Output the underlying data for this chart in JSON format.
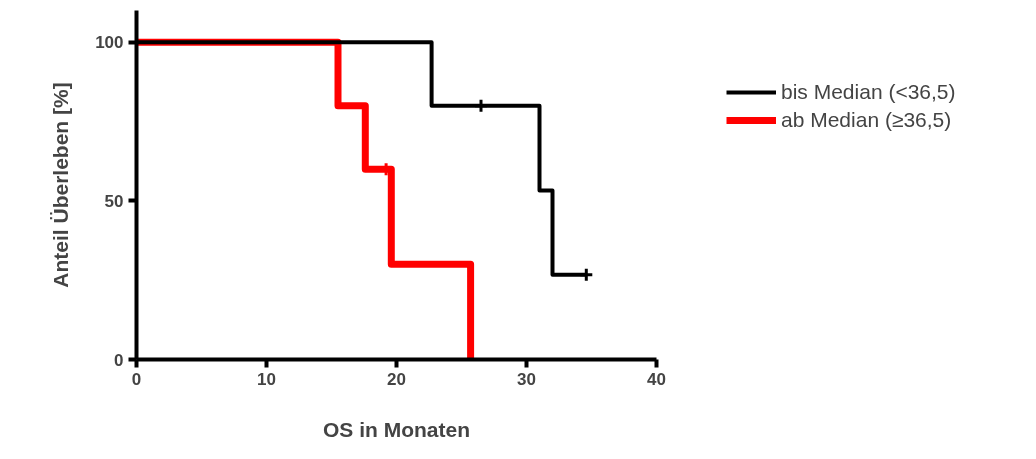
{
  "chart_data": {
    "type": "step",
    "xlabel": "OS in Monaten",
    "ylabel": "Anteil Überleben [%]",
    "xlim": [
      0,
      40
    ],
    "xticks": [
      0,
      10,
      20,
      30,
      40
    ],
    "ylim": [
      0,
      110
    ],
    "yticks": [
      0,
      50,
      100
    ],
    "grid": false,
    "legend": "top right",
    "series": [
      {
        "name": "ab Median (≥36,5)",
        "color": "#ff0000",
        "x": [
          0,
          15.5,
          17.6,
          19.6,
          25.7
        ],
        "values": [
          100,
          80,
          60,
          30,
          0
        ]
      },
      {
        "name": "bis Median (<36,5)",
        "color": "#000000",
        "x": [
          0,
          22.7,
          31,
          32,
          34.6
        ],
        "values": [
          100,
          80,
          53.3,
          26.7,
          26.7
        ]
      },
      {
        "type": "scatter",
        "marker": "cross",
        "color": "#ff0000",
        "x": [
          19.2
        ],
        "values": [
          60
        ]
      },
      {
        "type": "scatter",
        "marker": "cross",
        "color": "#000000",
        "x": [
          26.5,
          34.6
        ],
        "values": [
          80,
          26.7
        ]
      }
    ]
  }
}
